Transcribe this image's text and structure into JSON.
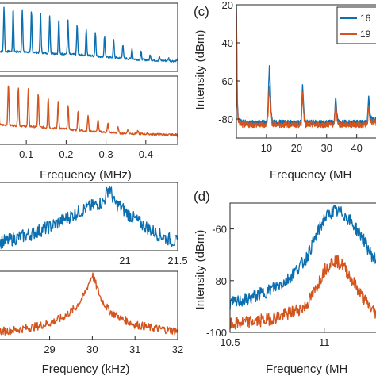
{
  "colors": {
    "blue": "#0b6fb0",
    "orange": "#d4541e",
    "axis": "#262626"
  },
  "chart_data": [
    {
      "type": "line",
      "panel": "a (top)",
      "xlabel": "",
      "xlim": [
        0,
        0.48
      ],
      "ylim": [
        0,
        1
      ],
      "xticks": [],
      "series": [
        {
          "color": "#0b6fb0",
          "x": [
            0,
            0.025,
            0.05,
            0.075,
            0.1,
            0.125,
            0.15,
            0.175,
            0.2,
            0.225,
            0.25,
            0.275,
            0.3,
            0.325,
            0.35,
            0.375,
            0.4,
            0.425,
            0.45,
            0.475
          ],
          "y": [
            0.95,
            0.96,
            0.94,
            0.9,
            0.88,
            0.84,
            0.8,
            0.76,
            0.72,
            0.66,
            0.6,
            0.54,
            0.48,
            0.42,
            0.36,
            0.3,
            0.26,
            0.22,
            0.2,
            0.18
          ]
        }
      ]
    },
    {
      "type": "line",
      "panel": "a (bottom)",
      "xlabel": "Frequency (MHz)",
      "xlim": [
        0.03,
        0.48
      ],
      "ylim": [
        0,
        1
      ],
      "xticks": [
        0.1,
        0.2,
        0.3,
        0.4
      ],
      "xticklabels": [
        "0.1",
        "0.2",
        "0.3",
        "0.4"
      ],
      "series": [
        {
          "color": "#d4541e",
          "x": [
            0.03,
            0.05,
            0.075,
            0.1,
            0.125,
            0.15,
            0.175,
            0.2,
            0.225,
            0.25,
            0.275,
            0.3,
            0.325,
            0.35,
            0.375,
            0.4,
            0.425,
            0.45,
            0.475
          ],
          "y": [
            0.92,
            0.9,
            0.86,
            0.82,
            0.76,
            0.7,
            0.64,
            0.58,
            0.5,
            0.44,
            0.38,
            0.32,
            0.27,
            0.23,
            0.2,
            0.17,
            0.15,
            0.13,
            0.12
          ]
        }
      ]
    },
    {
      "type": "line",
      "panel": "b (top)",
      "xlabel": "",
      "xlim": [
        19.8,
        21.5
      ],
      "ylim": [
        0,
        1
      ],
      "xticks": [
        21,
        21.5
      ],
      "xticklabels": [
        "21",
        "21.5"
      ],
      "series": [
        {
          "color": "#0b6fb0",
          "x": [
            19.8,
            19.9,
            20.0,
            20.1,
            20.2,
            20.3,
            20.4,
            20.5,
            20.6,
            20.7,
            20.8,
            20.85,
            20.9,
            20.95,
            21.0,
            21.1,
            21.2,
            21.3,
            21.4,
            21.5
          ],
          "y": [
            0.12,
            0.15,
            0.2,
            0.24,
            0.3,
            0.36,
            0.44,
            0.52,
            0.6,
            0.66,
            0.72,
            0.95,
            0.7,
            0.66,
            0.58,
            0.45,
            0.35,
            0.25,
            0.18,
            0.12
          ]
        }
      ]
    },
    {
      "type": "line",
      "panel": "b (bottom)",
      "xlabel": "Frequency (kHz)",
      "xlim": [
        27.8,
        32
      ],
      "ylim": [
        0,
        1
      ],
      "xticks": [
        29,
        30,
        31,
        32
      ],
      "xticklabels": [
        "29",
        "30",
        "31",
        "32"
      ],
      "series": [
        {
          "color": "#d4541e",
          "x": [
            27.8,
            28.2,
            28.6,
            29.0,
            29.3,
            29.6,
            29.8,
            29.9,
            30.0,
            30.1,
            30.2,
            30.4,
            30.7,
            31.0,
            31.4,
            31.8,
            32.0
          ],
          "y": [
            0.12,
            0.14,
            0.18,
            0.24,
            0.32,
            0.46,
            0.64,
            0.8,
            0.95,
            0.78,
            0.6,
            0.42,
            0.3,
            0.22,
            0.17,
            0.14,
            0.12
          ]
        }
      ]
    },
    {
      "type": "line",
      "panel": "c",
      "panel_label": "(c)",
      "xlabel": "Frequency (MH",
      "ylabel": "Intensity (dBm)",
      "xlim": [
        0,
        48
      ],
      "ylim": [
        -90,
        -20
      ],
      "xticks": [
        10,
        20,
        30,
        40
      ],
      "xticklabels": [
        "10",
        "20",
        "30",
        "40"
      ],
      "yticks": [
        -80,
        -60,
        -40,
        -20
      ],
      "yticklabels": [
        "-80",
        "-60",
        "-40",
        "-20"
      ],
      "series": [
        {
          "name": "16",
          "color": "#0b6fb0",
          "x": [
            0,
            0.3,
            0.6,
            1,
            2,
            10,
            10.5,
            11,
            11.5,
            12,
            21.5,
            22,
            22.5,
            23,
            32.5,
            33,
            33.5,
            34,
            43.5,
            44,
            44.5,
            48
          ],
          "y": [
            -20,
            -70,
            -79,
            -81,
            -82,
            -82,
            -75,
            -50,
            -75,
            -82,
            -82,
            -62,
            -77,
            -82,
            -82,
            -68,
            -79,
            -82,
            -82,
            -68,
            -79,
            -82
          ]
        },
        {
          "name": "19",
          "color": "#d4541e",
          "x": [
            0,
            0.3,
            0.6,
            1,
            2,
            10,
            10.5,
            11,
            11.5,
            12,
            21.5,
            22,
            22.5,
            23,
            32.5,
            33,
            33.5,
            34,
            43.5,
            44,
            44.5,
            48
          ],
          "y": [
            -22,
            -72,
            -80,
            -82,
            -83,
            -83,
            -77,
            -62,
            -77,
            -83,
            -83,
            -66,
            -79,
            -83,
            -83,
            -72,
            -80,
            -83,
            -83,
            -74,
            -81,
            -83
          ]
        }
      ]
    },
    {
      "type": "line",
      "panel": "d",
      "panel_label": "(d)",
      "xlabel": "Frequency (MH",
      "ylabel": "Intensity (dBm)",
      "xlim": [
        10.5,
        11.3
      ],
      "ylim": [
        -100,
        -50
      ],
      "xticks": [
        10.5,
        11
      ],
      "xticklabels": [
        "10.5",
        "11"
      ],
      "yticks": [
        -100,
        -80,
        -60
      ],
      "yticklabels": [
        "-100",
        "-80",
        "-60"
      ],
      "series": [
        {
          "color": "#0b6fb0",
          "x": [
            10.5,
            10.6,
            10.7,
            10.8,
            10.9,
            10.95,
            11.0,
            11.05,
            11.1,
            11.15,
            11.2,
            11.25,
            11.3
          ],
          "y": [
            -89,
            -87,
            -84,
            -80,
            -72,
            -64,
            -56,
            -53,
            -54,
            -58,
            -63,
            -70,
            -74
          ]
        },
        {
          "color": "#d4541e",
          "x": [
            10.5,
            10.6,
            10.7,
            10.8,
            10.9,
            10.95,
            11.0,
            11.05,
            11.1,
            11.15,
            11.2,
            11.25,
            11.3
          ],
          "y": [
            -97,
            -96,
            -95,
            -93,
            -90,
            -84,
            -76,
            -72,
            -74,
            -80,
            -86,
            -91,
            -94
          ]
        }
      ]
    }
  ]
}
